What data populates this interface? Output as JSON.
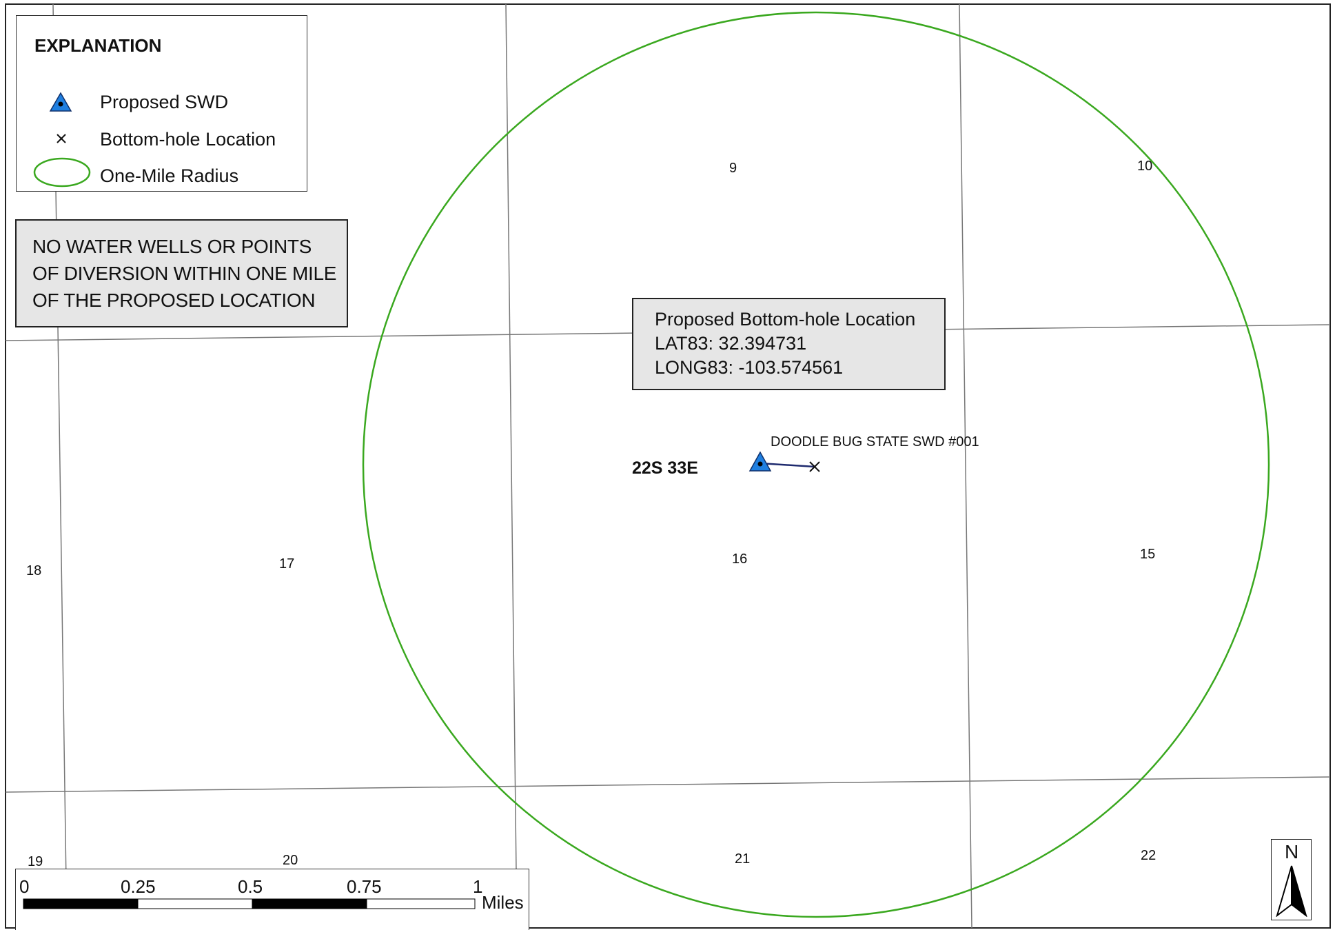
{
  "legend": {
    "title": "EXPLANATION",
    "items": [
      {
        "label": "Proposed SWD",
        "icon": "blue-triangle-icon"
      },
      {
        "label": "Bottom-hole Location",
        "icon": "x-mark-icon"
      },
      {
        "label": "One-Mile Radius",
        "icon": "green-ellipse-icon"
      }
    ]
  },
  "notice": {
    "lines": [
      "NO WATER WELLS OR POINTS",
      "OF DIVERSION WITHIN ONE MILE",
      "OF THE PROPOSED LOCATION"
    ]
  },
  "bottom_hole_box": {
    "title": "Proposed Bottom-hole Location",
    "lat": "LAT83:  32.394731",
    "long": "LONG83:  -103.574561"
  },
  "well": {
    "name": "DOODLE BUG STATE SWD #001",
    "township": "22S 33E"
  },
  "sections": [
    "9",
    "10",
    "17",
    "18",
    "16",
    "15",
    "19",
    "20",
    "21",
    "22"
  ],
  "scale_bar": {
    "ticks": [
      "0",
      "0.25",
      "0.5",
      "0.75",
      "1"
    ],
    "unit": "Miles"
  },
  "north_arrow": {
    "label": "N"
  },
  "colors": {
    "radius": "#3aa81f",
    "swd_fill": "#1f7fe0",
    "well_path": "#1e2a6e",
    "grid": "#777777",
    "box_fill": "#e6e6e6"
  }
}
